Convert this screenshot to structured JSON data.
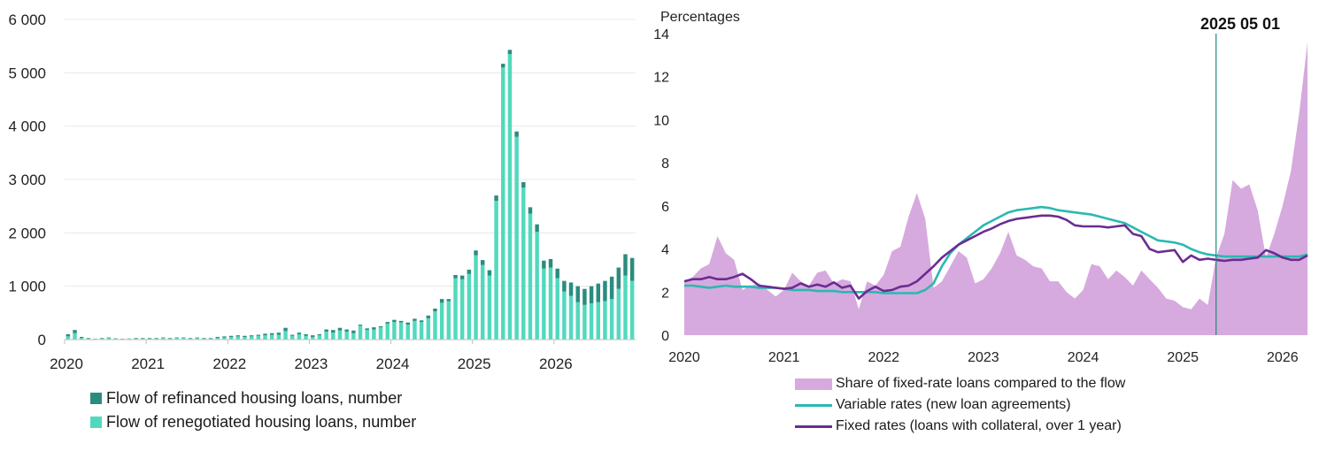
{
  "colors": {
    "refinanced": "#2a8c7e",
    "renegotiated": "#52d9bd",
    "share_area": "#d6aade",
    "variable": "#2bb8b2",
    "fixed": "#6b2c91",
    "marker": "#1f8a7a",
    "grid": "#e8e8e8"
  },
  "chart_data": [
    {
      "type": "bar",
      "stacked": true,
      "title": "",
      "xlabel": "",
      "ylabel": "",
      "ylim": [
        0,
        6000
      ],
      "yticks": [
        0,
        1000,
        2000,
        3000,
        4000,
        5000,
        6000
      ],
      "ytick_labels": [
        "0",
        "1 000",
        "2 000",
        "3 000",
        "4 000",
        "5 000",
        "6 000"
      ],
      "xticks": [
        "2020",
        "2021",
        "2022",
        "2023",
        "2024",
        "2025",
        "2026"
      ],
      "start": "2020-01",
      "grid": true,
      "legend_position": "bottom",
      "series": [
        {
          "name": "Flow of refinanced housing loans, number",
          "values": [
            40,
            60,
            20,
            10,
            5,
            10,
            10,
            5,
            5,
            5,
            10,
            10,
            10,
            10,
            10,
            10,
            10,
            10,
            10,
            10,
            10,
            10,
            20,
            20,
            20,
            20,
            20,
            20,
            20,
            30,
            30,
            40,
            60,
            20,
            30,
            30,
            30,
            20,
            40,
            50,
            50,
            40,
            50,
            20,
            30,
            40,
            20,
            30,
            40,
            30,
            40,
            40,
            30,
            50,
            50,
            70,
            40,
            60,
            70,
            80,
            90,
            90,
            100,
            100,
            70,
            80,
            100,
            100,
            120,
            140,
            150,
            160,
            180,
            200,
            250,
            300,
            300,
            320,
            350,
            380,
            420,
            400,
            400,
            430
          ]
        },
        {
          "name": "Flow of renegotiated housing loans, number",
          "values": [
            60,
            120,
            30,
            20,
            10,
            20,
            30,
            20,
            10,
            15,
            20,
            20,
            20,
            20,
            30,
            20,
            30,
            30,
            20,
            30,
            20,
            20,
            30,
            40,
            50,
            60,
            50,
            60,
            70,
            80,
            90,
            90,
            160,
            70,
            100,
            70,
            50,
            80,
            150,
            130,
            170,
            150,
            120,
            260,
            180,
            190,
            230,
            300,
            330,
            320,
            280,
            350,
            330,
            400,
            530,
            690,
            720,
            1150,
            1130,
            1230,
            1580,
            1400,
            1200,
            2600,
            5100,
            5350,
            3800,
            2850,
            2360,
            2020,
            1330,
            1350,
            1150,
            900,
            820,
            700,
            650,
            680,
            700,
            720,
            760,
            950,
            1200,
            1100
          ]
        }
      ]
    },
    {
      "type": "line",
      "title": "",
      "ylabel": "Percentages",
      "xlabel": "",
      "ylim": [
        0,
        14
      ],
      "yticks": [
        0,
        2,
        4,
        6,
        8,
        10,
        12,
        14
      ],
      "xticks": [
        "2020",
        "2021",
        "2022",
        "2023",
        "2024",
        "2025",
        "2026"
      ],
      "start": "2020-01",
      "grid": false,
      "legend_position": "bottom",
      "annotation": {
        "label": "2025 05 01",
        "x": "2025-05-01"
      },
      "series": [
        {
          "name": "Share of fixed-rate loans compared to the flow",
          "kind": "area",
          "values": [
            2.5,
            2.7,
            3.1,
            3.3,
            4.6,
            3.8,
            3.5,
            2.1,
            2.3,
            2.4,
            2.1,
            1.8,
            2.1,
            2.9,
            2.5,
            2.3,
            2.9,
            3.0,
            2.4,
            2.6,
            2.5,
            1.2,
            2.5,
            2.3,
            2.8,
            3.9,
            4.1,
            5.5,
            6.6,
            5.4,
            2.2,
            2.5,
            3.2,
            3.9,
            3.6,
            2.4,
            2.6,
            3.1,
            3.8,
            4.8,
            3.7,
            3.5,
            3.2,
            3.1,
            2.5,
            2.5,
            2.0,
            1.7,
            2.1,
            3.3,
            3.2,
            2.6,
            3.0,
            2.7,
            2.3,
            3.0,
            2.6,
            2.2,
            1.7,
            1.6,
            1.3,
            1.2,
            1.7,
            1.4,
            3.6,
            4.7,
            7.2,
            6.8,
            7.0,
            5.8,
            3.6,
            4.7,
            6.0,
            7.6,
            10.3,
            13.6
          ]
        },
        {
          "name": "Variable rates (new loan agreements)",
          "kind": "line",
          "values": [
            2.3,
            2.3,
            2.25,
            2.2,
            2.25,
            2.3,
            2.25,
            2.25,
            2.25,
            2.2,
            2.2,
            2.2,
            2.15,
            2.1,
            2.1,
            2.1,
            2.05,
            2.05,
            2.05,
            2.0,
            2.0,
            2.0,
            2.0,
            2.0,
            1.95,
            1.95,
            1.95,
            1.95,
            1.95,
            2.1,
            2.4,
            3.2,
            3.8,
            4.2,
            4.5,
            4.8,
            5.1,
            5.3,
            5.5,
            5.7,
            5.8,
            5.85,
            5.9,
            5.95,
            5.9,
            5.8,
            5.75,
            5.7,
            5.65,
            5.6,
            5.5,
            5.4,
            5.3,
            5.2,
            5.0,
            4.8,
            4.6,
            4.4,
            4.35,
            4.3,
            4.2,
            4.0,
            3.85,
            3.75,
            3.7,
            3.65,
            3.65,
            3.65,
            3.65,
            3.65,
            3.65,
            3.65,
            3.65,
            3.65,
            3.65,
            3.75
          ]
        },
        {
          "name": "Fixed rates (loans with collateral, over 1 year)",
          "kind": "line",
          "values": [
            2.5,
            2.6,
            2.6,
            2.7,
            2.6,
            2.6,
            2.7,
            2.85,
            2.6,
            2.3,
            2.25,
            2.2,
            2.15,
            2.2,
            2.4,
            2.25,
            2.35,
            2.25,
            2.45,
            2.2,
            2.3,
            1.7,
            2.05,
            2.25,
            2.05,
            2.1,
            2.25,
            2.3,
            2.5,
            2.85,
            3.2,
            3.6,
            3.9,
            4.2,
            4.4,
            4.6,
            4.8,
            4.95,
            5.15,
            5.3,
            5.4,
            5.45,
            5.5,
            5.55,
            5.55,
            5.5,
            5.35,
            5.1,
            5.05,
            5.05,
            5.05,
            5.0,
            5.05,
            5.1,
            4.7,
            4.6,
            4.0,
            3.85,
            3.9,
            3.95,
            3.4,
            3.7,
            3.5,
            3.55,
            3.5,
            3.45,
            3.5,
            3.5,
            3.55,
            3.6,
            3.95,
            3.8,
            3.6,
            3.5,
            3.5,
            3.7
          ]
        }
      ]
    }
  ]
}
